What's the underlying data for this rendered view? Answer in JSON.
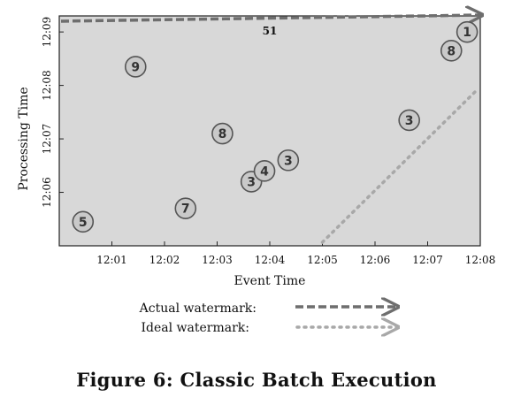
{
  "caption": "Figure 6: Classic Batch Execution",
  "chart_data": {
    "type": "scatter",
    "xlabel": "Event Time",
    "ylabel": "Processing Time",
    "x_ticks": [
      "12:01",
      "12:02",
      "12:03",
      "12:04",
      "12:05",
      "12:06",
      "12:07",
      "12:08"
    ],
    "y_ticks": [
      "12:06",
      "12:07",
      "12:08",
      "12:09"
    ],
    "xlim": [
      "12:00",
      "12:08"
    ],
    "ylim": [
      "12:05",
      "12:09.3"
    ],
    "points": [
      {
        "x": "12:00.45",
        "y": "12:05.45",
        "label": "5"
      },
      {
        "x": "12:01.45",
        "y": "12:08.35",
        "label": "9"
      },
      {
        "x": "12:02.40",
        "y": "12:05.70",
        "label": "7"
      },
      {
        "x": "12:03.10",
        "y": "12:07.10",
        "label": "8"
      },
      {
        "x": "12:03.65",
        "y": "12:06.20",
        "label": "3"
      },
      {
        "x": "12:03.90",
        "y": "12:06.40",
        "label": "4"
      },
      {
        "x": "12:04.35",
        "y": "12:06.60",
        "label": "3"
      },
      {
        "x": "12:06.65",
        "y": "12:07.35",
        "label": "3"
      },
      {
        "x": "12:07.45",
        "y": "12:08.65",
        "label": "8"
      },
      {
        "x": "12:07.75",
        "y": "12:09.00",
        "label": "1"
      }
    ],
    "actual_watermark_label": "51",
    "legend": [
      {
        "name": "Actual watermark:",
        "style": "dashed",
        "color": "#6e6e6e"
      },
      {
        "name": "Ideal watermark:",
        "style": "dotted",
        "color": "#a8a8a8"
      }
    ],
    "colors": {
      "background": "#d8d8d8",
      "point_fill": "#c9c9c9",
      "point_stroke": "#555555"
    }
  }
}
